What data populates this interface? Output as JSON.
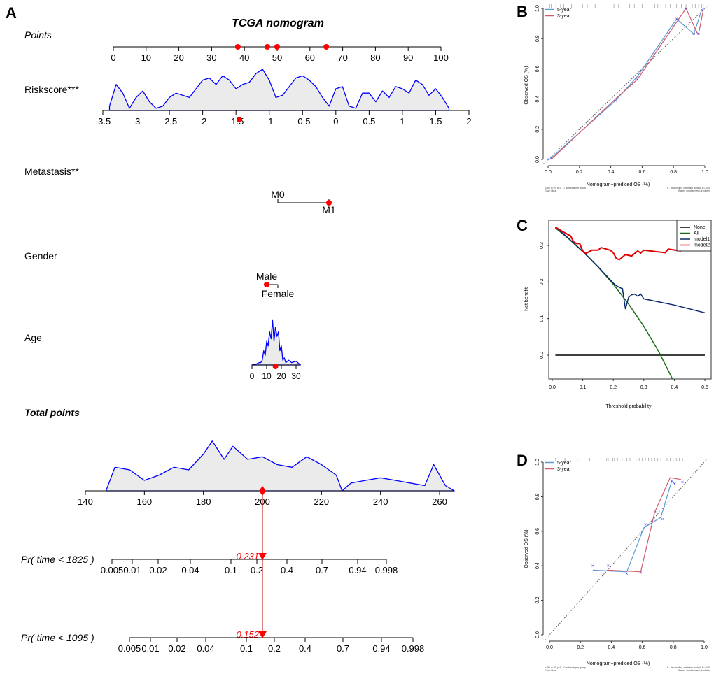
{
  "panels": {
    "a": "A",
    "b": "B",
    "c": "C",
    "d": "D"
  },
  "chart_data": [
    {
      "type": "nomogram",
      "title": "TCGA nomogram",
      "colors": {
        "density_line": "#0000ff",
        "density_fill": "#ebebeb",
        "marker": "#ff0000"
      },
      "points": {
        "label": "Points",
        "ticks": [
          0,
          10,
          20,
          30,
          40,
          50,
          60,
          70,
          80,
          90,
          100
        ],
        "selected": [
          38,
          47,
          50,
          65
        ]
      },
      "riskscore": {
        "label": "Riskscore***",
        "ticks": [
          -3.5,
          -3,
          -2.5,
          -2,
          -1.5,
          -1,
          -0.5,
          0,
          0.5,
          1,
          1.5,
          2
        ],
        "selected": -1.45,
        "density_x": [
          -3.4,
          -3.3,
          -3.2,
          -3.1,
          -3.0,
          -2.9,
          -2.8,
          -2.7,
          -2.6,
          -2.5,
          -2.4,
          -2.3,
          -2.2,
          -2.1,
          -2.0,
          -1.9,
          -1.8,
          -1.7,
          -1.6,
          -1.5,
          -1.4,
          -1.3,
          -1.2,
          -1.1,
          -1.0,
          -0.9,
          -0.8,
          -0.7,
          -0.6,
          -0.5,
          -0.4,
          -0.3,
          -0.2,
          -0.1,
          0,
          0.1,
          0.2,
          0.3,
          0.4,
          0.5,
          0.6,
          0.7,
          0.8,
          0.9,
          1.0,
          1.1,
          1.2,
          1.3,
          1.4,
          1.5,
          1.6,
          1.7
        ],
        "density": [
          0.1,
          0.6,
          0.4,
          0.05,
          0.3,
          0.45,
          0.2,
          0.05,
          0.1,
          0.3,
          0.4,
          0.35,
          0.3,
          0.5,
          0.7,
          0.75,
          0.6,
          0.8,
          0.7,
          0.5,
          0.6,
          0.65,
          0.85,
          0.95,
          0.7,
          0.3,
          0.35,
          0.55,
          0.75,
          0.8,
          0.7,
          0.55,
          0.3,
          0.1,
          0.5,
          0.55,
          0.1,
          0.05,
          0.4,
          0.4,
          0.2,
          0.45,
          0.3,
          0.55,
          0.5,
          0.4,
          0.7,
          0.6,
          0.35,
          0.5,
          0.3,
          0.05
        ]
      },
      "metastasis": {
        "label": "Metastasis**",
        "levels": [
          "M0",
          "M1"
        ],
        "selected": "M1"
      },
      "gender": {
        "label": "Gender",
        "levels": [
          "Male",
          "Female"
        ],
        "selected": "Male"
      },
      "age": {
        "label": "Age",
        "ticks": [
          0,
          10,
          20,
          30
        ],
        "selected": 16,
        "density_x": [
          0,
          3,
          5,
          6,
          7,
          8,
          9,
          10,
          11,
          12,
          13,
          14,
          15,
          16,
          17,
          18,
          19,
          20,
          21,
          22,
          23,
          25,
          27,
          30,
          33
        ],
        "density": [
          0,
          0.02,
          0.05,
          0.05,
          0.1,
          0.3,
          0.2,
          0.5,
          0.4,
          0.7,
          0.55,
          0.95,
          0.5,
          0.8,
          0.6,
          0.7,
          0.3,
          0.4,
          0.1,
          0.15,
          0.05,
          0.1,
          0.05,
          0.08,
          0
        ]
      },
      "total_points": {
        "label": "Total points",
        "ticks": [
          140,
          160,
          180,
          200,
          220,
          240,
          260
        ],
        "selected": 200,
        "selected_label": "200",
        "density_x": [
          147,
          150,
          155,
          160,
          165,
          170,
          175,
          180,
          183,
          187,
          190,
          195,
          200,
          205,
          210,
          215,
          220,
          225,
          227,
          230,
          235,
          240,
          245,
          250,
          255,
          258,
          262,
          265
        ],
        "density": [
          0,
          0.45,
          0.4,
          0.2,
          0.3,
          0.45,
          0.4,
          0.7,
          0.95,
          0.6,
          0.85,
          0.6,
          0.65,
          0.5,
          0.45,
          0.65,
          0.5,
          0.3,
          0,
          0.15,
          0.2,
          0.25,
          0.2,
          0.15,
          0.1,
          0.5,
          0.1,
          0
        ]
      },
      "prob_1825": {
        "label": "Pr( time < 1825 )",
        "ticks": [
          "0.005",
          "0.01",
          "0.02",
          "0.04",
          "0.1",
          "0.2",
          "0.4",
          "0.7",
          "0.94",
          "0.998"
        ],
        "value": "0.231"
      },
      "prob_1095": {
        "label": "Pr( time < 1095 )",
        "ticks": [
          "0.005",
          "0.01",
          "0.02",
          "0.04",
          "0.1",
          "0.2",
          "0.4",
          "0.7",
          "0.94",
          "0.998"
        ],
        "value": "0.152"
      }
    },
    {
      "type": "line",
      "panel": "B",
      "xlabel": "Nomogram−prediced OS (%)",
      "ylabel": "Observed OS (%)",
      "xlim": [
        0,
        1
      ],
      "ylim": [
        0,
        1
      ],
      "ticks": [
        "0.0",
        "0.2",
        "0.4",
        "0.6",
        "0.8",
        "1.0"
      ],
      "series": [
        {
          "name": "5-year",
          "color": "#5b9bd5",
          "points": [
            [
              0.01,
              0.0
            ],
            [
              0.02,
              0.01
            ],
            [
              0.43,
              0.39
            ],
            [
              0.57,
              0.55
            ],
            [
              0.82,
              0.93
            ],
            [
              0.93,
              0.83
            ],
            [
              0.98,
              0.99
            ]
          ]
        },
        {
          "name": "3-year",
          "color": "#d05a6e",
          "points": [
            [
              0.02,
              0.0
            ],
            [
              0.43,
              0.4
            ],
            [
              0.57,
              0.53
            ],
            [
              0.88,
              1.0
            ],
            [
              0.95,
              0.84
            ],
            [
              0.96,
              0.83
            ],
            [
              0.99,
              0.99
            ]
          ]
        }
      ],
      "x_marks": [
        [
          0.0,
          0.0
        ],
        [
          0.02,
          0.01
        ],
        [
          0.43,
          0.39
        ],
        [
          0.57,
          0.53
        ],
        [
          0.82,
          0.93
        ],
        [
          0.93,
          0.83
        ],
        [
          0.96,
          0.83
        ],
        [
          0.88,
          1.0
        ],
        [
          0.98,
          0.99
        ]
      ],
      "rug": [
        0.01,
        0.02,
        0.05,
        0.08,
        0.1,
        0.15,
        0.22,
        0.25,
        0.3,
        0.32,
        0.42,
        0.45,
        0.52,
        0.55,
        0.6,
        0.68,
        0.7,
        0.72,
        0.75,
        0.78,
        0.82,
        0.85,
        0.88,
        0.9,
        0.92,
        0.94,
        0.96,
        0.98,
        0.99
      ],
      "footnote_left": [
        "n=65 d=29 p=4, 17 subjects per group",
        "Gray: ideal"
      ],
      "footnote_right": [
        "X - resampling optimism added, B=1000",
        "Based on observed-predicted"
      ]
    },
    {
      "type": "line",
      "panel": "C",
      "xlabel": "Threshold probability",
      "ylabel": "Net benefit",
      "xlim": [
        0,
        0.5
      ],
      "ylim": [
        -0.065,
        0.369
      ],
      "xticks": [
        "0.0",
        "0.1",
        "0.2",
        "0.3",
        "0.4",
        "0.5"
      ],
      "yticks": [
        "0.0",
        "0.1",
        "0.2",
        "0.3"
      ],
      "legend": "top-right",
      "series": [
        {
          "name": "None",
          "color": "#000000",
          "points": [
            [
              0.01,
              0
            ],
            [
              0.5,
              0
            ]
          ]
        },
        {
          "name": "All",
          "color": "#1a6b1a",
          "points": [
            [
              0.01,
              0.348
            ],
            [
              0.05,
              0.321
            ],
            [
              0.1,
              0.283
            ],
            [
              0.15,
              0.241
            ],
            [
              0.2,
              0.194
            ],
            [
              0.25,
              0.14
            ],
            [
              0.3,
              0.079
            ],
            [
              0.35,
              0.008
            ],
            [
              0.4,
              -0.075
            ]
          ]
        },
        {
          "name": "model1",
          "color": "#0d2a6b",
          "points": [
            [
              0.01,
              0.35
            ],
            [
              0.05,
              0.322
            ],
            [
              0.1,
              0.284
            ],
            [
              0.15,
              0.242
            ],
            [
              0.2,
              0.197
            ],
            [
              0.21,
              0.19
            ],
            [
              0.22,
              0.185
            ],
            [
              0.23,
              0.182
            ],
            [
              0.24,
              0.126
            ],
            [
              0.25,
              0.158
            ],
            [
              0.26,
              0.165
            ],
            [
              0.27,
              0.167
            ],
            [
              0.28,
              0.161
            ],
            [
              0.29,
              0.167
            ],
            [
              0.3,
              0.154
            ],
            [
              0.4,
              0.137
            ],
            [
              0.5,
              0.116
            ]
          ]
        },
        {
          "name": "model2",
          "color": "#e00000",
          "points": [
            [
              0.01,
              0.35
            ],
            [
              0.02,
              0.345
            ],
            [
              0.04,
              0.335
            ],
            [
              0.06,
              0.326
            ],
            [
              0.07,
              0.31
            ],
            [
              0.08,
              0.305
            ],
            [
              0.09,
              0.305
            ],
            [
              0.1,
              0.285
            ],
            [
              0.11,
              0.278
            ],
            [
              0.13,
              0.287
            ],
            [
              0.15,
              0.287
            ],
            [
              0.16,
              0.294
            ],
            [
              0.19,
              0.287
            ],
            [
              0.2,
              0.28
            ],
            [
              0.21,
              0.264
            ],
            [
              0.22,
              0.261
            ],
            [
              0.24,
              0.275
            ],
            [
              0.26,
              0.271
            ],
            [
              0.28,
              0.285
            ],
            [
              0.29,
              0.279
            ],
            [
              0.3,
              0.287
            ],
            [
              0.37,
              0.28
            ],
            [
              0.38,
              0.29
            ],
            [
              0.42,
              0.285
            ],
            [
              0.43,
              0.3
            ],
            [
              0.45,
              0.3
            ]
          ]
        }
      ]
    },
    {
      "type": "line",
      "panel": "D",
      "xlabel": "Nomogram−prediced OS (%)",
      "ylabel": "Observed OS (%)",
      "xlim": [
        0,
        1
      ],
      "ylim": [
        0,
        1
      ],
      "ticks": [
        "0.0",
        "0.2",
        "0.4",
        "0.6",
        "0.8",
        "1.0"
      ],
      "series": [
        {
          "name": "5-year",
          "color": "#5b9bd5",
          "points": [
            [
              0.28,
              0.375
            ],
            [
              0.5,
              0.365
            ],
            [
              0.61,
              0.62
            ],
            [
              0.72,
              0.68
            ],
            [
              0.79,
              0.89
            ],
            [
              0.81,
              0.875
            ]
          ]
        },
        {
          "name": "3-year",
          "color": "#d05a6e",
          "points": [
            [
              0.38,
              0.375
            ],
            [
              0.59,
              0.365
            ],
            [
              0.68,
              0.71
            ],
            [
              0.69,
              0.73
            ],
            [
              0.78,
              0.91
            ],
            [
              0.85,
              0.9
            ]
          ]
        }
      ],
      "x_marks": [
        [
          0.28,
          0.4
        ],
        [
          0.38,
          0.4
        ],
        [
          0.5,
          0.355
        ],
        [
          0.59,
          0.36
        ],
        [
          0.62,
          0.64
        ],
        [
          0.69,
          0.71
        ],
        [
          0.73,
          0.67
        ],
        [
          0.79,
          0.89
        ],
        [
          0.81,
          0.875
        ],
        [
          0.86,
          0.885
        ]
      ],
      "rug": [
        0.04,
        0.1,
        0.18,
        0.26,
        0.3,
        0.37,
        0.38,
        0.41,
        0.42,
        0.44,
        0.45,
        0.47,
        0.5,
        0.52,
        0.54,
        0.56,
        0.58,
        0.6,
        0.62,
        0.64,
        0.66,
        0.68,
        0.7,
        0.72,
        0.74,
        0.76,
        0.78,
        0.8,
        0.82,
        0.84,
        0.86
      ],
      "footnote_left": [
        "n=53 d=23 p=1, 10 subjects per group",
        "Gray: ideal"
      ],
      "footnote_right": [
        "X - resampling optimism added, B=1000",
        "Based on observed-predicted"
      ]
    }
  ]
}
